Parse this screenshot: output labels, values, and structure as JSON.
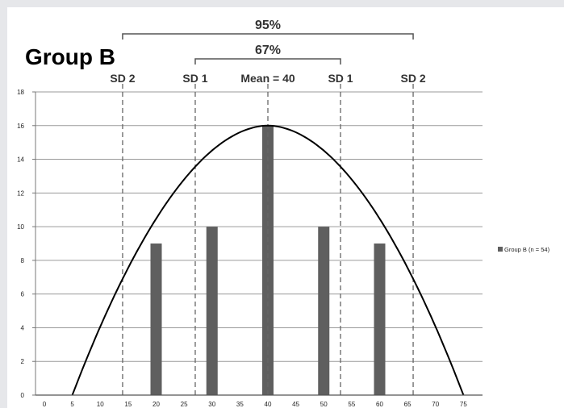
{
  "chart_data": {
    "type": "bar",
    "title": "Group B",
    "x_ticks": [
      0,
      5,
      10,
      15,
      20,
      25,
      30,
      35,
      40,
      45,
      50,
      55,
      60,
      65,
      70,
      75
    ],
    "ylim": [
      0,
      18
    ],
    "y_ticks": [
      0,
      2,
      4,
      6,
      8,
      10,
      12,
      14,
      16,
      18
    ],
    "grid": true,
    "legend_position": "right",
    "series": [
      {
        "name": "Group B (n = 54)",
        "color": "#5f5f5f",
        "x": [
          20,
          30,
          40,
          50,
          60
        ],
        "values": [
          9,
          10,
          16,
          10,
          9
        ]
      }
    ],
    "curve": {
      "type": "normal-curve-overlay",
      "x_start": 5,
      "x_peak": 40,
      "x_end": 75,
      "y_peak": 16
    },
    "reference_lines": [
      {
        "label": "SD 2",
        "x": 14
      },
      {
        "label": "SD  1",
        "x": 27
      },
      {
        "label": "Mean = 40",
        "x": 40
      },
      {
        "label": "SD  1",
        "x": 53
      },
      {
        "label": "SD 2",
        "x": 66
      }
    ],
    "brackets": [
      {
        "label": "95%",
        "x_start": 14,
        "x_end": 66
      },
      {
        "label": "67%",
        "x_start": 27,
        "x_end": 53
      }
    ]
  }
}
